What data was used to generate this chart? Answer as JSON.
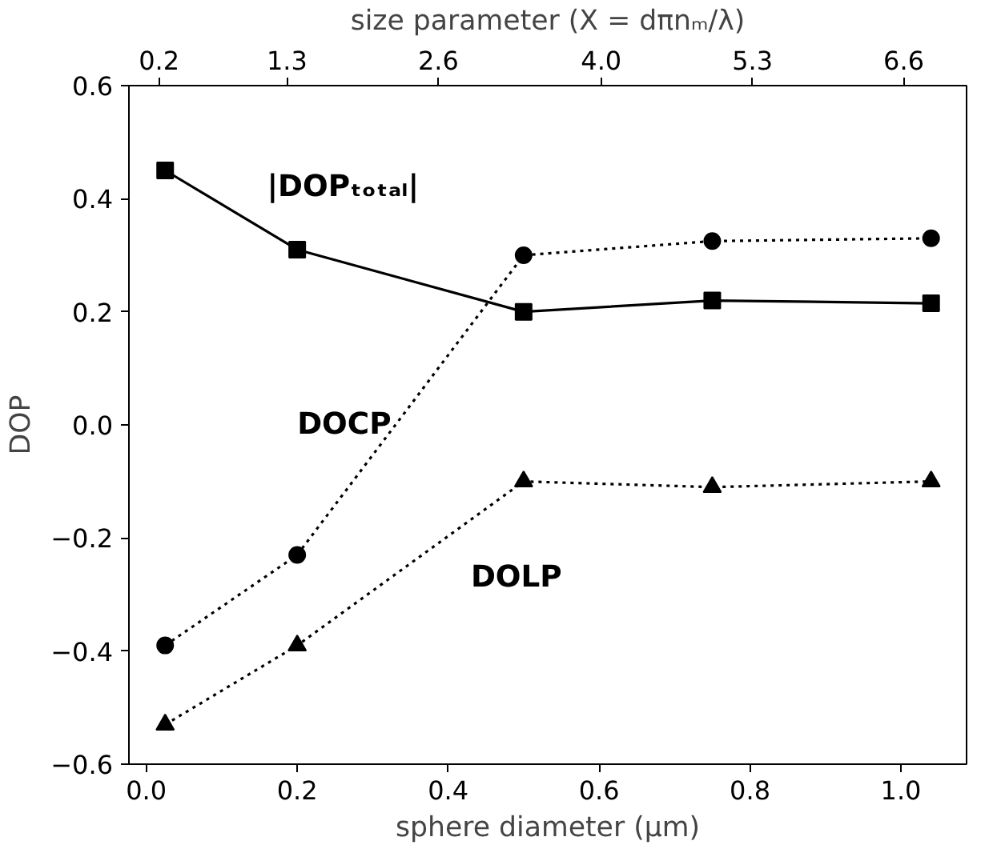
{
  "chart_data": {
    "type": "line",
    "xlabel": "sphere diameter (μm)",
    "ylabel": "DOP",
    "x2label": "size parameter (X = dπnₘ/λ)",
    "x": [
      0.025,
      0.2,
      0.5,
      0.75,
      1.04
    ],
    "series": [
      {
        "name": "|DOPₜₒₜₐₗ|",
        "color": "#000000",
        "values": [
          0.45,
          0.31,
          0.2,
          0.22,
          0.215
        ],
        "marker": "square",
        "line_style": "solid"
      },
      {
        "name": "DOCP",
        "color": "#000000",
        "values": [
          -0.39,
          -0.23,
          0.3,
          0.325,
          0.33
        ],
        "marker": "circle",
        "line_style": "dotted"
      },
      {
        "name": "DOLP",
        "color": "#000000",
        "values": [
          -0.53,
          -0.39,
          -0.1,
          -0.11,
          -0.1
        ],
        "marker": "triangle",
        "line_style": "dotted"
      }
    ],
    "xlim": [
      -0.023,
      1.087
    ],
    "xticks": [
      {
        "value": 0,
        "label": "0.0"
      },
      0.2,
      0.4,
      0.6,
      0.8,
      {
        "value": 1,
        "label": "1.0"
      }
    ],
    "ylim": [
      -0.6,
      0.6
    ],
    "yticks": [
      {
        "value": -0.6,
        "label": "−0.6"
      },
      {
        "value": -0.4,
        "label": "−0.4"
      },
      {
        "value": -0.2,
        "label": "−0.2"
      },
      {
        "value": 0,
        "label": "0.0"
      },
      0.2,
      0.4,
      0.6
    ],
    "x2lim": [
      -0.059,
      7.14
    ],
    "x2ticks": [
      0.2,
      1.3,
      2.6,
      {
        "value": 4,
        "label": "4.0"
      },
      5.3,
      6.6
    ],
    "grid": false,
    "legend": false
  }
}
